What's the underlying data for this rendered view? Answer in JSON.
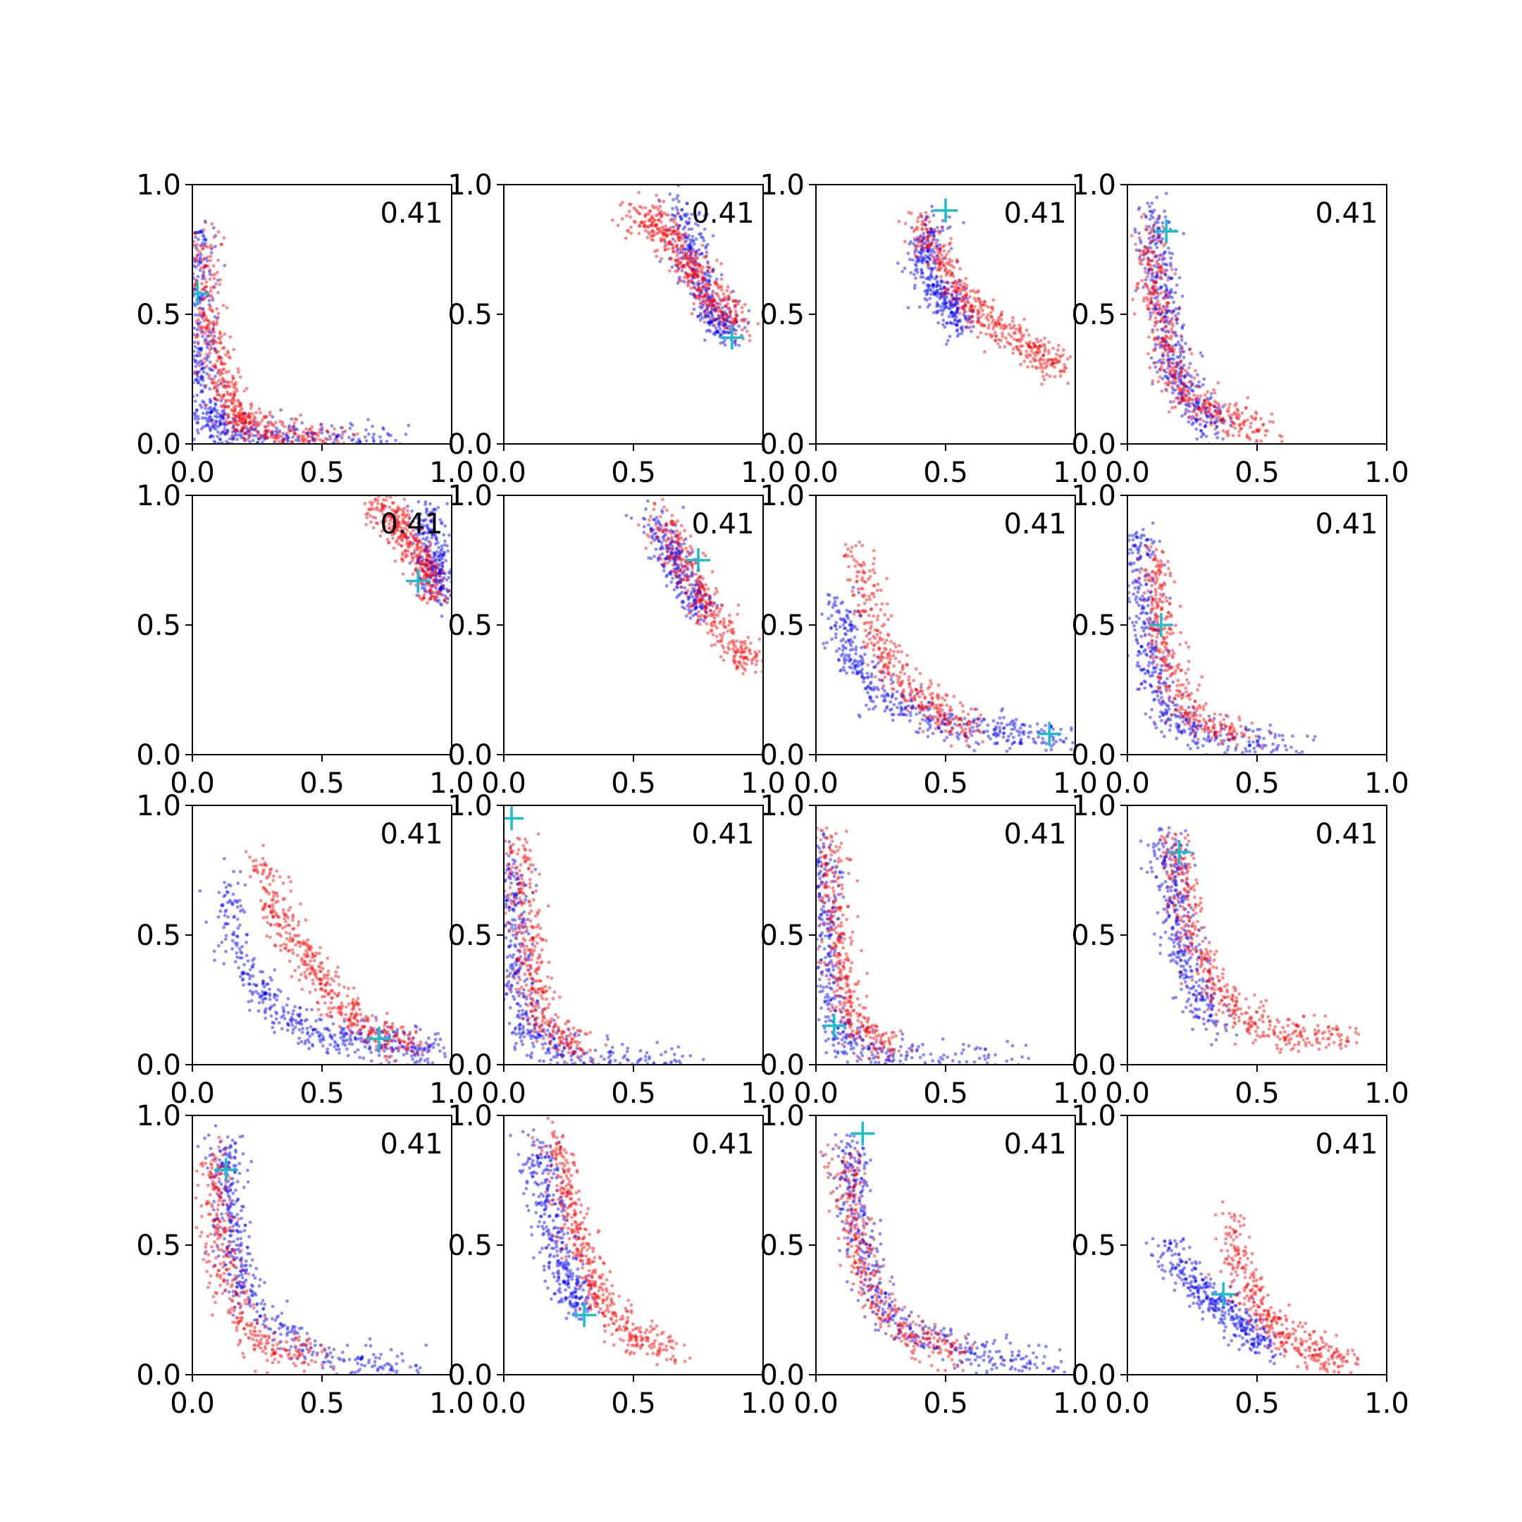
{
  "figure": {
    "colors": {
      "blue": "#0000ff",
      "red": "#ff0000",
      "marker": "#17becf",
      "axes": "#000000"
    },
    "annotation": "0.41"
  },
  "chart_data": [
    {
      "type": "scatter",
      "title": "",
      "xlabel": "",
      "ylabel": "",
      "xlim": [
        0,
        1
      ],
      "ylim": [
        0,
        1
      ],
      "xticks": [
        "0.0",
        "0.5",
        "1.0"
      ],
      "yticks": [
        "0.0",
        "0.5",
        "1.0"
      ],
      "annotation": "0.41",
      "marker": [
        0.02,
        0.58
      ],
      "blue_cluster": [
        [
          0.02,
          0.85
        ],
        [
          0.02,
          0.6
        ],
        [
          0.03,
          0.35
        ],
        [
          0.05,
          0.15
        ],
        [
          0.1,
          0.05
        ],
        [
          0.25,
          0.02
        ],
        [
          0.5,
          0.01
        ],
        [
          0.8,
          0.01
        ]
      ],
      "red_cluster": [
        [
          0.04,
          0.8
        ],
        [
          0.06,
          0.5
        ],
        [
          0.1,
          0.3
        ],
        [
          0.15,
          0.15
        ],
        [
          0.2,
          0.08
        ],
        [
          0.35,
          0.03
        ],
        [
          0.6,
          0.02
        ]
      ]
    },
    {
      "type": "scatter",
      "title": "",
      "xlabel": "",
      "ylabel": "",
      "xlim": [
        0,
        1
      ],
      "ylim": [
        0,
        1
      ],
      "xticks": [
        "0.0",
        "0.5",
        "1.0"
      ],
      "yticks": [
        "0.0",
        "0.5",
        "1.0"
      ],
      "annotation": "0.41",
      "marker": [
        0.88,
        0.41
      ],
      "blue_cluster": [
        [
          0.68,
          0.92
        ],
        [
          0.72,
          0.75
        ],
        [
          0.76,
          0.6
        ],
        [
          0.82,
          0.48
        ],
        [
          0.88,
          0.42
        ]
      ],
      "red_cluster": [
        [
          0.5,
          0.88
        ],
        [
          0.6,
          0.85
        ],
        [
          0.68,
          0.75
        ],
        [
          0.74,
          0.65
        ],
        [
          0.82,
          0.55
        ],
        [
          0.9,
          0.45
        ]
      ]
    },
    {
      "type": "scatter",
      "title": "",
      "xlabel": "",
      "ylabel": "",
      "xlim": [
        0,
        1
      ],
      "ylim": [
        0,
        1
      ],
      "xticks": [
        "0.0",
        "0.5",
        "1.0"
      ],
      "yticks": [
        "0.0",
        "0.5",
        "1.0"
      ],
      "annotation": "0.41",
      "marker": [
        0.5,
        0.9
      ],
      "blue_cluster": [
        [
          0.45,
          0.85
        ],
        [
          0.42,
          0.72
        ],
        [
          0.45,
          0.6
        ],
        [
          0.52,
          0.55
        ],
        [
          0.55,
          0.45
        ]
      ],
      "red_cluster": [
        [
          0.4,
          0.85
        ],
        [
          0.48,
          0.7
        ],
        [
          0.58,
          0.55
        ],
        [
          0.7,
          0.45
        ],
        [
          0.85,
          0.35
        ],
        [
          0.95,
          0.3
        ]
      ]
    },
    {
      "type": "scatter",
      "title": "",
      "xlabel": "",
      "ylabel": "",
      "xlim": [
        0,
        1
      ],
      "ylim": [
        0,
        1
      ],
      "xticks": [
        "0.0",
        "0.5",
        "1.0"
      ],
      "yticks": [
        "0.0",
        "0.5",
        "1.0"
      ],
      "annotation": "0.41",
      "marker": [
        0.15,
        0.82
      ],
      "blue_cluster": [
        [
          0.1,
          0.9
        ],
        [
          0.12,
          0.7
        ],
        [
          0.15,
          0.5
        ],
        [
          0.18,
          0.3
        ],
        [
          0.25,
          0.15
        ],
        [
          0.35,
          0.08
        ]
      ],
      "red_cluster": [
        [
          0.08,
          0.85
        ],
        [
          0.1,
          0.6
        ],
        [
          0.14,
          0.4
        ],
        [
          0.2,
          0.2
        ],
        [
          0.35,
          0.1
        ],
        [
          0.55,
          0.06
        ]
      ]
    },
    {
      "type": "scatter",
      "title": "",
      "xlabel": "",
      "ylabel": "",
      "xlim": [
        0,
        1
      ],
      "ylim": [
        0,
        1
      ],
      "xticks": [
        "0.0",
        "0.5",
        "1.0"
      ],
      "yticks": [
        "0.0",
        "0.5",
        "1.0"
      ],
      "annotation": "0.41",
      "marker": [
        0.87,
        0.67
      ],
      "blue_cluster": [
        [
          0.9,
          0.95
        ],
        [
          0.92,
          0.8
        ],
        [
          0.94,
          0.7
        ],
        [
          0.96,
          0.6
        ]
      ],
      "red_cluster": [
        [
          0.7,
          0.97
        ],
        [
          0.78,
          0.9
        ],
        [
          0.84,
          0.82
        ],
        [
          0.9,
          0.72
        ],
        [
          0.94,
          0.6
        ]
      ]
    },
    {
      "type": "scatter",
      "title": "",
      "xlabel": "",
      "ylabel": "",
      "xlim": [
        0,
        1
      ],
      "ylim": [
        0,
        1
      ],
      "xticks": [
        "0.0",
        "0.5",
        "1.0"
      ],
      "yticks": [
        "0.0",
        "0.5",
        "1.0"
      ],
      "annotation": "0.41",
      "marker": [
        0.75,
        0.75
      ],
      "blue_cluster": [
        [
          0.58,
          0.9
        ],
        [
          0.64,
          0.78
        ],
        [
          0.7,
          0.65
        ],
        [
          0.76,
          0.55
        ]
      ],
      "red_cluster": [
        [
          0.6,
          0.92
        ],
        [
          0.68,
          0.75
        ],
        [
          0.76,
          0.6
        ],
        [
          0.86,
          0.45
        ],
        [
          0.95,
          0.33
        ]
      ]
    },
    {
      "type": "scatter",
      "title": "",
      "xlabel": "",
      "ylabel": "",
      "xlim": [
        0,
        1
      ],
      "ylim": [
        0,
        1
      ],
      "xticks": [
        "0.0",
        "0.5",
        "1.0"
      ],
      "yticks": [
        "0.0",
        "0.5",
        "1.0"
      ],
      "annotation": "0.41",
      "marker": [
        0.9,
        0.08
      ],
      "blue_cluster": [
        [
          0.08,
          0.6
        ],
        [
          0.12,
          0.4
        ],
        [
          0.25,
          0.22
        ],
        [
          0.45,
          0.12
        ],
        [
          0.7,
          0.08
        ],
        [
          0.95,
          0.06
        ]
      ],
      "red_cluster": [
        [
          0.15,
          0.8
        ],
        [
          0.22,
          0.5
        ],
        [
          0.3,
          0.3
        ],
        [
          0.45,
          0.18
        ],
        [
          0.6,
          0.1
        ]
      ]
    },
    {
      "type": "scatter",
      "title": "",
      "xlabel": "",
      "ylabel": "",
      "xlim": [
        0,
        1
      ],
      "ylim": [
        0,
        1
      ],
      "xticks": [
        "0.0",
        "0.5",
        "1.0"
      ],
      "yticks": [
        "0.0",
        "0.5",
        "1.0"
      ],
      "annotation": "0.41",
      "marker": [
        0.13,
        0.5
      ],
      "blue_cluster": [
        [
          0.05,
          0.85
        ],
        [
          0.06,
          0.6
        ],
        [
          0.08,
          0.35
        ],
        [
          0.15,
          0.15
        ],
        [
          0.35,
          0.05
        ],
        [
          0.7,
          0.02
        ]
      ],
      "red_cluster": [
        [
          0.1,
          0.8
        ],
        [
          0.12,
          0.55
        ],
        [
          0.16,
          0.35
        ],
        [
          0.25,
          0.15
        ],
        [
          0.45,
          0.07
        ]
      ]
    },
    {
      "type": "scatter",
      "title": "",
      "xlabel": "",
      "ylabel": "",
      "xlim": [
        0,
        1
      ],
      "ylim": [
        0,
        1
      ],
      "xticks": [
        "0.0",
        "0.5",
        "1.0"
      ],
      "yticks": [
        "0.0",
        "0.5",
        "1.0"
      ],
      "annotation": "0.41",
      "marker": [
        0.72,
        0.1
      ],
      "blue_cluster": [
        [
          0.12,
          0.7
        ],
        [
          0.2,
          0.35
        ],
        [
          0.35,
          0.18
        ],
        [
          0.55,
          0.1
        ],
        [
          0.75,
          0.08
        ],
        [
          0.95,
          0.05
        ]
      ],
      "red_cluster": [
        [
          0.25,
          0.8
        ],
        [
          0.35,
          0.55
        ],
        [
          0.45,
          0.4
        ],
        [
          0.55,
          0.25
        ],
        [
          0.7,
          0.12
        ],
        [
          0.85,
          0.08
        ]
      ]
    },
    {
      "type": "scatter",
      "title": "",
      "xlabel": "",
      "ylabel": "",
      "xlim": [
        0,
        1
      ],
      "ylim": [
        0,
        1
      ],
      "xticks": [
        "0.0",
        "0.5",
        "1.0"
      ],
      "yticks": [
        "0.0",
        "0.5",
        "1.0"
      ],
      "annotation": "0.41",
      "marker": [
        0.03,
        0.95
      ],
      "blue_cluster": [
        [
          0.03,
          0.8
        ],
        [
          0.04,
          0.55
        ],
        [
          0.05,
          0.3
        ],
        [
          0.1,
          0.1
        ],
        [
          0.3,
          0.03
        ],
        [
          0.7,
          0.01
        ]
      ],
      "red_cluster": [
        [
          0.06,
          0.85
        ],
        [
          0.08,
          0.6
        ],
        [
          0.1,
          0.35
        ],
        [
          0.15,
          0.15
        ],
        [
          0.3,
          0.05
        ]
      ]
    },
    {
      "type": "scatter",
      "title": "",
      "xlabel": "",
      "ylabel": "",
      "xlim": [
        0,
        1
      ],
      "ylim": [
        0,
        1
      ],
      "xticks": [
        "0.0",
        "0.5",
        "1.0"
      ],
      "yticks": [
        "0.0",
        "0.5",
        "1.0"
      ],
      "annotation": "0.41",
      "marker": [
        0.07,
        0.15
      ],
      "blue_cluster": [
        [
          0.02,
          0.85
        ],
        [
          0.03,
          0.6
        ],
        [
          0.04,
          0.35
        ],
        [
          0.08,
          0.1
        ],
        [
          0.3,
          0.02
        ],
        [
          0.8,
          0.01
        ]
      ],
      "red_cluster": [
        [
          0.05,
          0.9
        ],
        [
          0.07,
          0.6
        ],
        [
          0.1,
          0.35
        ],
        [
          0.15,
          0.15
        ],
        [
          0.3,
          0.05
        ]
      ]
    },
    {
      "type": "scatter",
      "title": "",
      "xlabel": "",
      "ylabel": "",
      "xlim": [
        0,
        1
      ],
      "ylim": [
        0,
        1
      ],
      "xticks": [
        "0.0",
        "0.5",
        "1.0"
      ],
      "yticks": [
        "0.0",
        "0.5",
        "1.0"
      ],
      "annotation": "0.41",
      "marker": [
        0.2,
        0.82
      ],
      "blue_cluster": [
        [
          0.15,
          0.9
        ],
        [
          0.18,
          0.7
        ],
        [
          0.2,
          0.5
        ],
        [
          0.25,
          0.3
        ],
        [
          0.35,
          0.15
        ]
      ],
      "red_cluster": [
        [
          0.18,
          0.88
        ],
        [
          0.22,
          0.65
        ],
        [
          0.28,
          0.4
        ],
        [
          0.4,
          0.2
        ],
        [
          0.6,
          0.12
        ],
        [
          0.85,
          0.1
        ]
      ]
    },
    {
      "type": "scatter",
      "title": "",
      "xlabel": "",
      "ylabel": "",
      "xlim": [
        0,
        1
      ],
      "ylim": [
        0,
        1
      ],
      "xticks": [
        "0.0",
        "0.5",
        "1.0"
      ],
      "yticks": [
        "0.0",
        "0.5",
        "1.0"
      ],
      "annotation": "0.41",
      "marker": [
        0.13,
        0.79
      ],
      "blue_cluster": [
        [
          0.12,
          0.9
        ],
        [
          0.14,
          0.7
        ],
        [
          0.16,
          0.5
        ],
        [
          0.2,
          0.3
        ],
        [
          0.5,
          0.05
        ],
        [
          0.85,
          0.03
        ]
      ],
      "red_cluster": [
        [
          0.08,
          0.85
        ],
        [
          0.1,
          0.6
        ],
        [
          0.14,
          0.35
        ],
        [
          0.25,
          0.12
        ],
        [
          0.5,
          0.06
        ]
      ]
    },
    {
      "type": "scatter",
      "title": "",
      "xlabel": "",
      "ylabel": "",
      "xlim": [
        0,
        1
      ],
      "ylim": [
        0,
        1
      ],
      "xticks": [
        "0.0",
        "0.5",
        "1.0"
      ],
      "yticks": [
        "0.0",
        "0.5",
        "1.0"
      ],
      "annotation": "0.41",
      "marker": [
        0.31,
        0.23
      ],
      "blue_cluster": [
        [
          0.12,
          0.9
        ],
        [
          0.16,
          0.7
        ],
        [
          0.2,
          0.5
        ],
        [
          0.25,
          0.35
        ],
        [
          0.3,
          0.25
        ]
      ],
      "red_cluster": [
        [
          0.2,
          0.9
        ],
        [
          0.25,
          0.7
        ],
        [
          0.3,
          0.5
        ],
        [
          0.36,
          0.3
        ],
        [
          0.5,
          0.15
        ],
        [
          0.65,
          0.1
        ]
      ]
    },
    {
      "type": "scatter",
      "title": "",
      "xlabel": "",
      "ylabel": "",
      "xlim": [
        0,
        1
      ],
      "ylim": [
        0,
        1
      ],
      "xticks": [
        "0.0",
        "0.5",
        "1.0"
      ],
      "yticks": [
        "0.0",
        "0.5",
        "1.0"
      ],
      "annotation": "0.41",
      "marker": [
        0.18,
        0.93
      ],
      "blue_cluster": [
        [
          0.12,
          0.9
        ],
        [
          0.14,
          0.7
        ],
        [
          0.18,
          0.45
        ],
        [
          0.3,
          0.2
        ],
        [
          0.6,
          0.08
        ],
        [
          0.9,
          0.03
        ]
      ],
      "red_cluster": [
        [
          0.1,
          0.85
        ],
        [
          0.15,
          0.6
        ],
        [
          0.2,
          0.35
        ],
        [
          0.35,
          0.15
        ],
        [
          0.55,
          0.08
        ]
      ]
    },
    {
      "type": "scatter",
      "title": "",
      "xlabel": "",
      "ylabel": "",
      "xlim": [
        0,
        1
      ],
      "ylim": [
        0,
        1
      ],
      "xticks": [
        "0.0",
        "0.5",
        "1.0"
      ],
      "yticks": [
        "0.0",
        "0.5",
        "1.0"
      ],
      "annotation": "0.41",
      "marker": [
        0.37,
        0.31
      ],
      "blue_cluster": [
        [
          0.15,
          0.5
        ],
        [
          0.25,
          0.35
        ],
        [
          0.35,
          0.28
        ],
        [
          0.45,
          0.18
        ],
        [
          0.55,
          0.1
        ]
      ],
      "red_cluster": [
        [
          0.4,
          0.6
        ],
        [
          0.45,
          0.35
        ],
        [
          0.55,
          0.2
        ],
        [
          0.7,
          0.1
        ],
        [
          0.85,
          0.05
        ]
      ]
    }
  ]
}
